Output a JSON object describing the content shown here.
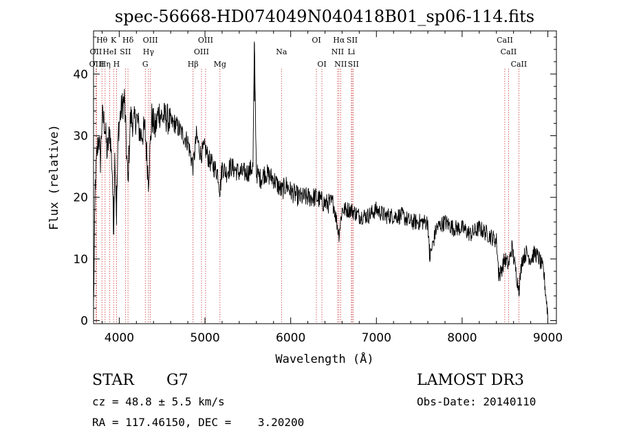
{
  "chart_data": {
    "type": "line",
    "title": "spec-56668-HD074049N040418B01_sp06-114.fits",
    "xlabel": "Wavelength (Å)",
    "ylabel": "Flux (relative)",
    "xlim": [
      3700,
      9100
    ],
    "ylim": [
      -0.5,
      47
    ],
    "x_ticks": [
      4000,
      5000,
      6000,
      7000,
      8000,
      9000
    ],
    "y_ticks": [
      0,
      10,
      20,
      30,
      40
    ],
    "grid": false,
    "line_color": "#000000",
    "marker_color": "#cc3333",
    "spectrum": {
      "x": [
        3700,
        3720,
        3740,
        3760,
        3780,
        3800,
        3830,
        3860,
        3890,
        3920,
        3933,
        3950,
        3968,
        3990,
        4020,
        4060,
        4101,
        4130,
        4170,
        4200,
        4250,
        4300,
        4340,
        4380,
        4420,
        4460,
        4500,
        4550,
        4600,
        4650,
        4700,
        4750,
        4800,
        4861,
        4900,
        4950,
        5000,
        5050,
        5100,
        5150,
        5175,
        5200,
        5250,
        5300,
        5400,
        5500,
        5560,
        5577,
        5600,
        5650,
        5700,
        5800,
        5893,
        5950,
        6000,
        6100,
        6200,
        6300,
        6400,
        6500,
        6563,
        6600,
        6700,
        6800,
        6900,
        7000,
        7100,
        7200,
        7300,
        7400,
        7500,
        7600,
        7620,
        7700,
        7800,
        7900,
        8000,
        8100,
        8200,
        8300,
        8400,
        8430,
        8498,
        8542,
        8580,
        8662,
        8700,
        8750,
        8800,
        8850,
        8900,
        8950,
        9000
      ],
      "y": [
        2,
        22,
        27,
        30,
        26,
        33,
        32,
        27,
        31,
        24,
        14,
        28,
        17,
        31,
        34,
        36,
        22,
        33,
        32,
        33,
        30,
        31,
        23,
        33,
        31,
        34,
        33,
        33,
        32,
        32,
        31,
        30,
        29,
        25,
        30,
        27,
        28,
        26,
        25,
        24,
        21,
        25,
        24,
        25,
        24,
        24,
        25,
        45,
        24,
        23,
        24,
        23,
        21,
        22,
        21,
        20,
        20,
        20,
        19,
        19,
        14,
        18,
        18,
        17,
        17,
        18,
        17,
        17,
        17,
        16,
        16,
        16,
        10,
        15,
        16,
        15,
        15,
        14,
        15,
        14,
        13,
        7,
        10,
        9,
        12,
        5,
        10,
        11,
        10,
        11,
        10,
        8,
        1
      ]
    },
    "lines": [
      {
        "label": "Hθ",
        "wavelength": 3798,
        "row": 1
      },
      {
        "label": "OII",
        "wavelength": 3727,
        "row": 2
      },
      {
        "label": "OIII",
        "wavelength": 3737,
        "row": 3
      },
      {
        "label": "Hη",
        "wavelength": 3835,
        "row": 3
      },
      {
        "label": "HeI",
        "wavelength": 3889,
        "row": 2
      },
      {
        "label": "K",
        "wavelength": 3934,
        "row": 1
      },
      {
        "label": "SII",
        "wavelength": 4072,
        "row": 2
      },
      {
        "label": "H",
        "wavelength": 3968,
        "row": 3
      },
      {
        "label": "Hδ",
        "wavelength": 4102,
        "row": 1
      },
      {
        "label": "OIII",
        "wavelength": 4363,
        "row": 1
      },
      {
        "label": "Hγ",
        "wavelength": 4341,
        "row": 2
      },
      {
        "label": "G",
        "wavelength": 4304,
        "row": 3
      },
      {
        "label": "OIII",
        "wavelength": 5007,
        "row": 1
      },
      {
        "label": "OIII",
        "wavelength": 4959,
        "row": 2
      },
      {
        "label": "Hβ",
        "wavelength": 4861,
        "row": 3
      },
      {
        "label": "Mg",
        "wavelength": 5175,
        "row": 3
      },
      {
        "label": "Na",
        "wavelength": 5893,
        "row": 2
      },
      {
        "label": "OI",
        "wavelength": 6300,
        "row": 1
      },
      {
        "label": "OI",
        "wavelength": 6364,
        "row": 3
      },
      {
        "label": "Hα",
        "wavelength": 6563,
        "row": 1
      },
      {
        "label": "NII",
        "wavelength": 6548,
        "row": 2
      },
      {
        "label": "NII",
        "wavelength": 6583,
        "row": 3
      },
      {
        "label": "SII",
        "wavelength": 6717,
        "row": 1
      },
      {
        "label": "Li",
        "wavelength": 6708,
        "row": 2
      },
      {
        "label": "SII",
        "wavelength": 6731,
        "row": 3
      },
      {
        "label": "CaII",
        "wavelength": 8498,
        "row": 1
      },
      {
        "label": "CaII",
        "wavelength": 8542,
        "row": 2
      },
      {
        "label": "CaII",
        "wavelength": 8662,
        "row": 3
      }
    ]
  },
  "info": {
    "class": "STAR",
    "subclass": "G7",
    "survey": "LAMOST DR3",
    "cz": "cz = 48.8 ± 5.5 km/s",
    "obs_date": "Obs-Date: 20140110",
    "coords": "RA = 117.46150, DEC =    3.20200"
  }
}
